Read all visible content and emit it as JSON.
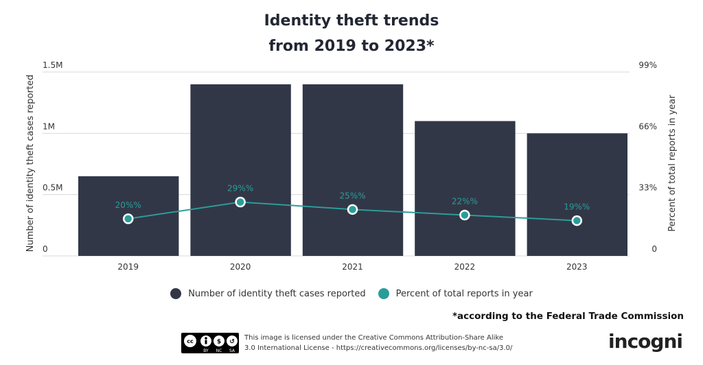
{
  "title_line1": "Identity theft trends",
  "title_line2": "from 2019 to 2023*",
  "chart_data": {
    "type": "bar+line",
    "categories": [
      "2019",
      "2020",
      "2021",
      "2022",
      "2023"
    ],
    "series": [
      {
        "name": "Number of identity theft cases reported",
        "type": "bar",
        "axis": "left",
        "values": [
          650000,
          1400000,
          1400000,
          1100000,
          1000000
        ],
        "color": "#323747"
      },
      {
        "name": "Percent of total reports in year",
        "type": "line",
        "axis": "right",
        "values": [
          20,
          29,
          25,
          22,
          19
        ],
        "labels": [
          "20%%",
          "29%%",
          "25%%",
          "22%%",
          "19%%"
        ],
        "color": "#2a9d9a"
      }
    ],
    "ylabel_left": "Number of identity theft cases reported",
    "ylabel_right": "Percent of total reports in year",
    "ylim_left": [
      0,
      1500000
    ],
    "ylim_right": [
      0,
      99
    ],
    "yticks_left": [
      "0",
      "0.5M",
      "1M",
      "1.5M"
    ],
    "yticks_right": [
      "0",
      "33%",
      "66%",
      "99%"
    ],
    "grid": true,
    "legend": "bottom"
  },
  "footnote": "*according to the Federal Trade Commission",
  "license_line1": "This image is licensed under the Creative Commons Attribution-Share Alike",
  "license_line2": "3.0 International License - https://creativecommons.org/licenses/by-nc-sa/3.0/",
  "license_badge": "CC BY NC SA",
  "logo": "incogni"
}
